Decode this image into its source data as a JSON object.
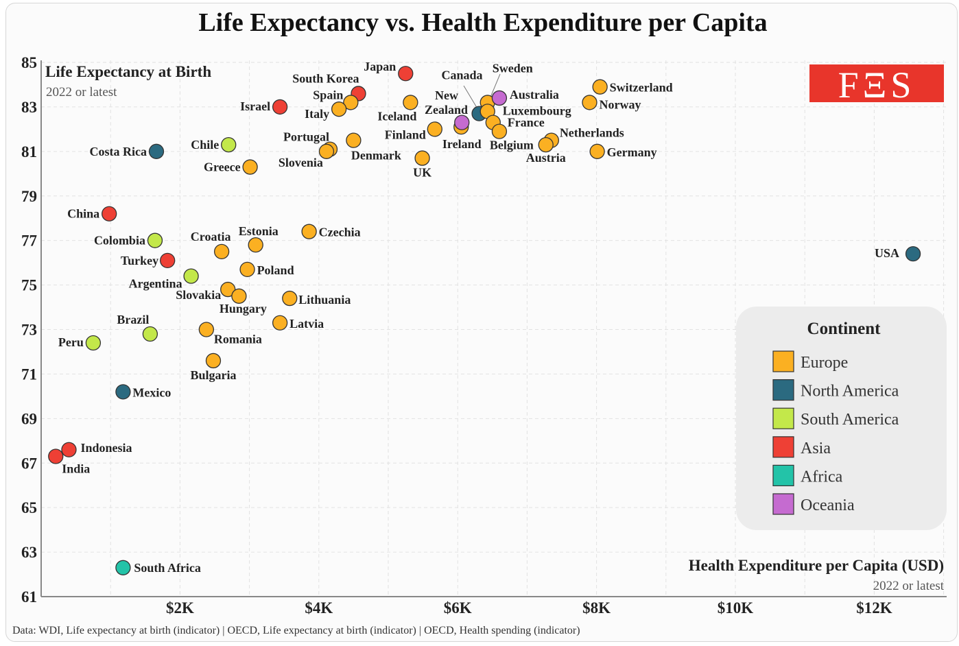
{
  "chart_data": {
    "type": "scatter",
    "title": "Life Expectancy vs. Health Expenditure per Capita",
    "ylabel": "Life Expectancy at Birth",
    "ylabel_sub": "2022 or latest",
    "xlabel": "Health Expenditure per Capita (USD)",
    "xlabel_sub": "2022 or latest",
    "xlim": [
      0,
      13000
    ],
    "ylim": [
      61,
      85
    ],
    "x_ticks": [
      {
        "v": 2000,
        "label": "$2K"
      },
      {
        "v": 4000,
        "label": "$4K"
      },
      {
        "v": 6000,
        "label": "$6K"
      },
      {
        "v": 8000,
        "label": "$8K"
      },
      {
        "v": 10000,
        "label": "$10K"
      },
      {
        "v": 12000,
        "label": "$12K"
      }
    ],
    "y_ticks": [
      61,
      63,
      65,
      67,
      69,
      71,
      73,
      75,
      77,
      79,
      81,
      83,
      85
    ],
    "grid": true,
    "source": "Data: WDI, Life expectancy at birth (indicator) | OECD, Life expectancy at birth (indicator) | OECD, Health spending (indicator)",
    "logo": "FES",
    "legend": {
      "title": "Continent",
      "placement": "right",
      "items": [
        {
          "name": "Europe",
          "color": "#FBB022"
        },
        {
          "name": "North America",
          "color": "#2B6A80"
        },
        {
          "name": "South America",
          "color": "#C3E84A"
        },
        {
          "name": "Asia",
          "color": "#EE4035"
        },
        {
          "name": "Africa",
          "color": "#23C3A8"
        },
        {
          "name": "Oceania",
          "color": "#C56BD0"
        }
      ]
    },
    "points": [
      {
        "country": "Japan",
        "continent": "Asia",
        "x": 5250,
        "y": 84.5
      },
      {
        "country": "South Korea",
        "continent": "Asia",
        "x": 4570,
        "y": 83.6
      },
      {
        "country": "Spain",
        "continent": "Europe",
        "x": 4460,
        "y": 83.2
      },
      {
        "country": "Italy",
        "continent": "Europe",
        "x": 4290,
        "y": 82.9
      },
      {
        "country": "Israel",
        "continent": "Asia",
        "x": 3440,
        "y": 83.0
      },
      {
        "country": "Iceland",
        "continent": "Europe",
        "x": 5320,
        "y": 83.2
      },
      {
        "country": "Canada",
        "continent": "North America",
        "x": 6310,
        "y": 82.7
      },
      {
        "country": "Sweden",
        "continent": "Europe",
        "x": 6430,
        "y": 83.2
      },
      {
        "country": "Australia",
        "continent": "Oceania",
        "x": 6600,
        "y": 83.4
      },
      {
        "country": "Luxembourg",
        "continent": "Europe",
        "x": 6430,
        "y": 82.8
      },
      {
        "country": "France",
        "continent": "Europe",
        "x": 6510,
        "y": 82.3
      },
      {
        "country": "Belgium",
        "continent": "Europe",
        "x": 6600,
        "y": 81.9
      },
      {
        "country": "Ireland",
        "continent": "Europe",
        "x": 6050,
        "y": 82.1
      },
      {
        "country": "New Zealand",
        "continent": "Oceania",
        "x": 6060,
        "y": 82.3
      },
      {
        "country": "Finland",
        "continent": "Europe",
        "x": 5670,
        "y": 82.0
      },
      {
        "country": "Portugal",
        "continent": "Europe",
        "x": 4160,
        "y": 81.1
      },
      {
        "country": "Slovenia",
        "continent": "Europe",
        "x": 4110,
        "y": 81.0
      },
      {
        "country": "Denmark",
        "continent": "Europe",
        "x": 4500,
        "y": 81.5
      },
      {
        "country": "UK",
        "continent": "Europe",
        "x": 5490,
        "y": 80.7
      },
      {
        "country": "Switzerland",
        "continent": "Europe",
        "x": 8050,
        "y": 83.9
      },
      {
        "country": "Norway",
        "continent": "Europe",
        "x": 7900,
        "y": 83.2
      },
      {
        "country": "Netherlands",
        "continent": "Europe",
        "x": 7350,
        "y": 81.5
      },
      {
        "country": "Austria",
        "continent": "Europe",
        "x": 7270,
        "y": 81.3
      },
      {
        "country": "Germany",
        "continent": "Europe",
        "x": 8010,
        "y": 81.0
      },
      {
        "country": "Costa Rica",
        "continent": "North America",
        "x": 1660,
        "y": 81.0
      },
      {
        "country": "Chile",
        "continent": "South America",
        "x": 2700,
        "y": 81.3
      },
      {
        "country": "Greece",
        "continent": "Europe",
        "x": 3010,
        "y": 80.3
      },
      {
        "country": "China",
        "continent": "Asia",
        "x": 980,
        "y": 78.2
      },
      {
        "country": "Colombia",
        "continent": "South America",
        "x": 1640,
        "y": 77.0
      },
      {
        "country": "Turkey",
        "continent": "Asia",
        "x": 1820,
        "y": 76.1
      },
      {
        "country": "Argentina",
        "continent": "South America",
        "x": 2160,
        "y": 75.4
      },
      {
        "country": "Croatia",
        "continent": "Europe",
        "x": 2600,
        "y": 76.5
      },
      {
        "country": "Estonia",
        "continent": "Europe",
        "x": 3090,
        "y": 76.8
      },
      {
        "country": "Czechia",
        "continent": "Europe",
        "x": 3860,
        "y": 77.4
      },
      {
        "country": "Poland",
        "continent": "Europe",
        "x": 2970,
        "y": 75.7
      },
      {
        "country": "USA",
        "continent": "North America",
        "x": 12560,
        "y": 76.4
      },
      {
        "country": "Slovakia",
        "continent": "Europe",
        "x": 2690,
        "y": 74.8
      },
      {
        "country": "Hungary",
        "continent": "Europe",
        "x": 2850,
        "y": 74.5
      },
      {
        "country": "Lithuania",
        "continent": "Europe",
        "x": 3580,
        "y": 74.4
      },
      {
        "country": "Latvia",
        "continent": "Europe",
        "x": 3440,
        "y": 73.3
      },
      {
        "country": "Brazil",
        "continent": "South America",
        "x": 1570,
        "y": 72.8
      },
      {
        "country": "Peru",
        "continent": "South America",
        "x": 750,
        "y": 72.4
      },
      {
        "country": "Romania",
        "continent": "Europe",
        "x": 2380,
        "y": 73.0
      },
      {
        "country": "Bulgaria",
        "continent": "Europe",
        "x": 2480,
        "y": 71.6
      },
      {
        "country": "Mexico",
        "continent": "North America",
        "x": 1180,
        "y": 70.2
      },
      {
        "country": "Indonesia",
        "continent": "Asia",
        "x": 400,
        "y": 67.6
      },
      {
        "country": "India",
        "continent": "Asia",
        "x": 210,
        "y": 67.3
      },
      {
        "country": "South Africa",
        "continent": "Africa",
        "x": 1180,
        "y": 62.3
      }
    ]
  }
}
